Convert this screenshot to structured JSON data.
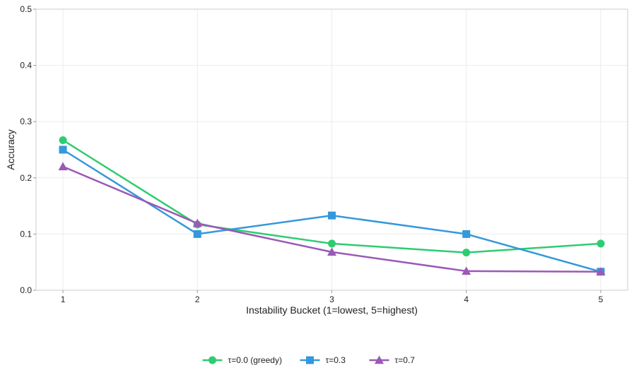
{
  "chart_data": {
    "type": "line",
    "title": "",
    "xlabel": "Instability Bucket (1=lowest, 5=highest)",
    "ylabel": "Accuracy",
    "x": [
      1,
      2,
      3,
      4,
      5
    ],
    "x_tick_labels": [
      "1",
      "2",
      "3",
      "4",
      "5"
    ],
    "y_ticks": [
      0.0,
      0.1,
      0.2,
      0.3,
      0.4,
      0.5
    ],
    "y_tick_labels": [
      "0.0",
      "0.1",
      "0.2",
      "0.3",
      "0.4",
      "0.5"
    ],
    "xlim": [
      0.8,
      5.2
    ],
    "ylim": [
      0,
      0.5
    ],
    "grid": true,
    "legend_position": "bottom-center",
    "series": [
      {
        "name": "τ=0.0 (greedy)",
        "marker": "circle",
        "color": "#2ecc71",
        "values": [
          0.267,
          0.117,
          0.083,
          0.067,
          0.083
        ]
      },
      {
        "name": "τ=0.3",
        "marker": "square",
        "color": "#3498db",
        "values": [
          0.25,
          0.1,
          0.133,
          0.1,
          0.033
        ]
      },
      {
        "name": "τ=0.7",
        "marker": "triangle",
        "color": "#9b59b6",
        "values": [
          0.22,
          0.119,
          0.068,
          0.034,
          0.033
        ]
      }
    ]
  }
}
